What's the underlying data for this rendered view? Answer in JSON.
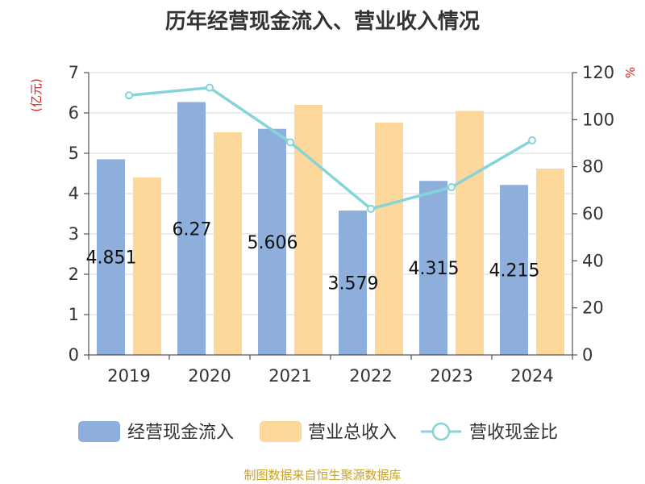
{
  "title": "历年经营现金流入、营业收入情况",
  "source": "制图数据来自恒生聚源数据库",
  "colors": {
    "cash_inflow": "#8eaedb",
    "revenue": "#fdd89a",
    "ratio_line": "#85d4d8",
    "unit_text": "#dd2222"
  },
  "chart_data": {
    "type": "bar",
    "categories": [
      "2019",
      "2020",
      "2021",
      "2022",
      "2023",
      "2024"
    ],
    "y_left": {
      "unit": "(亿元)",
      "ylim": [
        0,
        7
      ],
      "ticks": [
        0,
        1,
        2,
        3,
        4,
        5,
        6,
        7
      ]
    },
    "y_right": {
      "unit": "%",
      "ylim": [
        0,
        120
      ],
      "ticks": [
        0,
        20,
        40,
        60,
        80,
        100,
        120
      ]
    },
    "grid": true,
    "legend_position": "bottom",
    "series": [
      {
        "name": "经营现金流入",
        "type": "bar",
        "axis": "left",
        "values": [
          4.851,
          6.27,
          5.606,
          3.579,
          4.315,
          4.215
        ],
        "labels": [
          "4.851",
          "6.27",
          "5.606",
          "3.579",
          "4.315",
          "4.215"
        ]
      },
      {
        "name": "营业总收入",
        "type": "bar",
        "axis": "left",
        "values": [
          4.4,
          5.52,
          6.2,
          5.76,
          6.05,
          4.62
        ]
      },
      {
        "name": "营收现金比",
        "type": "line",
        "axis": "right",
        "values": [
          110.3,
          113.6,
          90.4,
          62.1,
          71.3,
          91.2
        ]
      }
    ]
  }
}
